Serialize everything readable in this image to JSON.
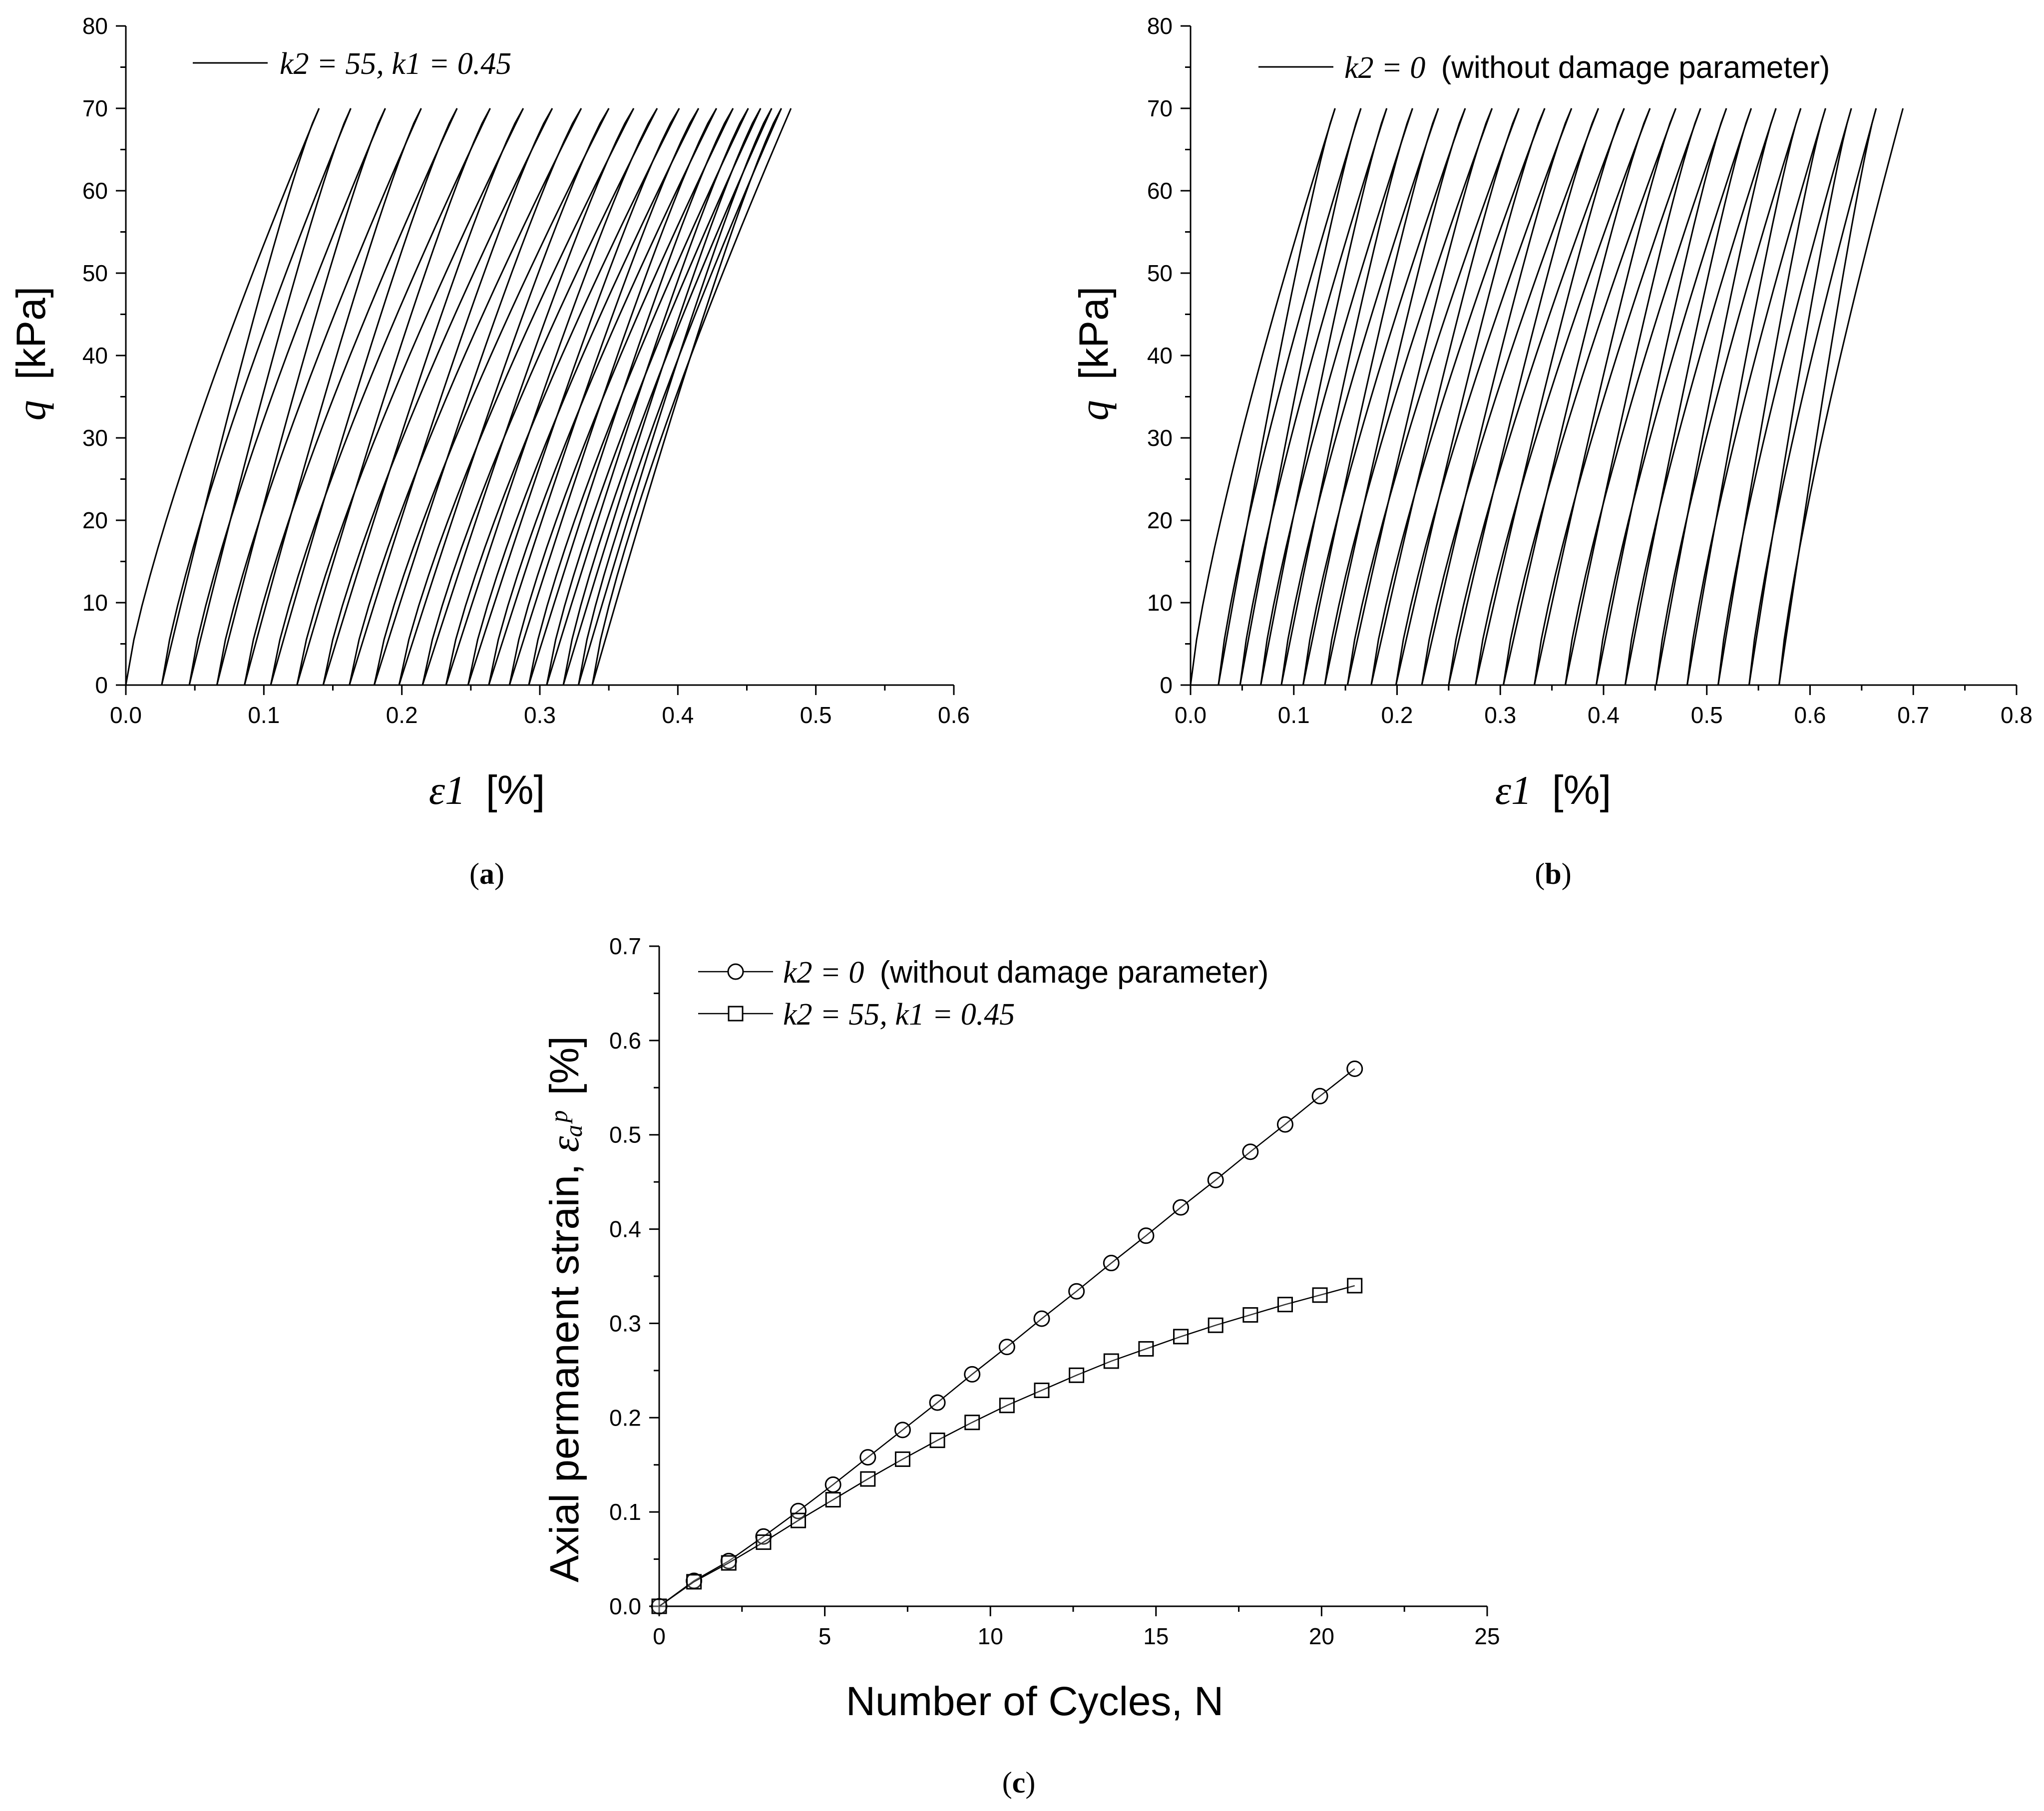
{
  "chart_data": [
    {
      "id": "a",
      "type": "line",
      "caption_letter": "a",
      "xlim": [
        0,
        0.6
      ],
      "ylim": [
        0,
        80
      ],
      "xticks": [
        "0.0",
        "0.1",
        "0.2",
        "0.3",
        "0.4",
        "0.5",
        "0.6"
      ],
      "yticks": [
        "0",
        "10",
        "20",
        "30",
        "40",
        "50",
        "60",
        "70",
        "80"
      ],
      "xlabel_symbol": "ε1",
      "xlabel_unit": "[%]",
      "ylabel_symbol": "q",
      "ylabel_unit": "[kPa]",
      "legend": "k2 = 55, k1 = 0.45",
      "q_max": 70,
      "loop_starts": [
        0.0,
        0.026,
        0.046,
        0.066,
        0.086,
        0.105,
        0.124,
        0.143,
        0.162,
        0.18,
        0.198,
        0.215,
        0.232,
        0.248,
        0.263,
        0.278,
        0.292,
        0.305,
        0.317,
        0.328,
        0.338
      ],
      "loop_peaks": [
        0.14,
        0.163,
        0.188,
        0.214,
        0.24,
        0.264,
        0.288,
        0.309,
        0.33,
        0.35,
        0.368,
        0.385,
        0.401,
        0.415,
        0.428,
        0.44,
        0.451,
        0.46,
        0.468,
        0.475,
        0.482
      ]
    },
    {
      "id": "b",
      "type": "line",
      "caption_letter": "b",
      "xlim": [
        0,
        0.8
      ],
      "ylim": [
        0,
        80
      ],
      "xticks": [
        "0.0",
        "0.1",
        "0.2",
        "0.3",
        "0.4",
        "0.5",
        "0.6",
        "0.7",
        "0.8"
      ],
      "yticks": [
        "0",
        "10",
        "20",
        "30",
        "40",
        "50",
        "60",
        "70",
        "80"
      ],
      "xlabel_symbol": "ε1",
      "xlabel_unit": "[%]",
      "ylabel_symbol": "q",
      "ylabel_unit": "[kPa]",
      "legend_math": "k2 = 0",
      "legend_text": "(without damage parameter)",
      "q_max": 70,
      "loop_starts": [
        0.0,
        0.027,
        0.048,
        0.068,
        0.088,
        0.109,
        0.13,
        0.152,
        0.175,
        0.199,
        0.224,
        0.25,
        0.276,
        0.303,
        0.333,
        0.363,
        0.393,
        0.421,
        0.451,
        0.481,
        0.511,
        0.541,
        0.57
      ],
      "loop_peaks": [
        0.14,
        0.165,
        0.19,
        0.215,
        0.24,
        0.266,
        0.292,
        0.318,
        0.343,
        0.369,
        0.395,
        0.42,
        0.445,
        0.47,
        0.494,
        0.519,
        0.543,
        0.567,
        0.591,
        0.615,
        0.64,
        0.664,
        0.69
      ]
    },
    {
      "id": "c",
      "type": "line",
      "caption_letter": "c",
      "xlim": [
        0,
        25
      ],
      "ylim": [
        0,
        0.7
      ],
      "xticks": [
        "0",
        "5",
        "10",
        "15",
        "20",
        "25"
      ],
      "yticks": [
        "0.0",
        "0.1",
        "0.2",
        "0.3",
        "0.4",
        "0.5",
        "0.6",
        "0.7"
      ],
      "xlabel": "Number of Cycles, N",
      "ylabel_text": "Axial permanent strain,",
      "ylabel_symbol": "εₐᵖ",
      "ylabel_unit": "[%]",
      "series": [
        {
          "name_math": "k2 = 0",
          "name_text": "(without damage parameter)",
          "marker": "circle",
          "x": [
            0,
            1.05,
            2.1,
            3.15,
            4.2,
            5.25,
            6.3,
            7.35,
            8.4,
            9.45,
            10.5,
            11.55,
            12.6,
            13.65,
            14.7,
            15.75,
            16.8,
            17.85,
            18.9,
            19.95,
            21.0
          ],
          "y": [
            0.0,
            0.027,
            0.048,
            0.074,
            0.101,
            0.129,
            0.158,
            0.187,
            0.216,
            0.246,
            0.275,
            0.305,
            0.334,
            0.364,
            0.393,
            0.423,
            0.452,
            0.482,
            0.511,
            0.541,
            0.57
          ]
        },
        {
          "name_math": "k2 = 55, k1 = 0.45",
          "name_text": "",
          "marker": "square",
          "x": [
            0,
            1.05,
            2.1,
            3.15,
            4.2,
            5.25,
            6.3,
            7.35,
            8.4,
            9.45,
            10.5,
            11.55,
            12.6,
            13.65,
            14.7,
            15.75,
            16.8,
            17.85,
            18.9,
            19.95,
            21.0
          ],
          "y": [
            0.0,
            0.026,
            0.046,
            0.068,
            0.091,
            0.113,
            0.135,
            0.156,
            0.176,
            0.195,
            0.213,
            0.229,
            0.245,
            0.26,
            0.273,
            0.286,
            0.298,
            0.309,
            0.32,
            0.33,
            0.34
          ]
        }
      ]
    }
  ]
}
